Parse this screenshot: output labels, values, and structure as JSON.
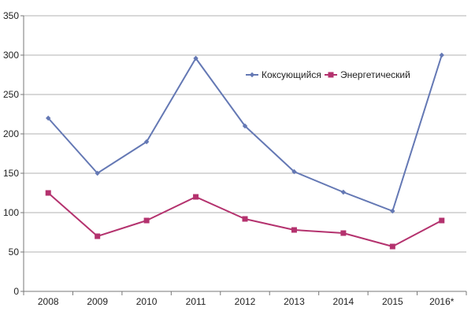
{
  "chart_data": {
    "type": "line",
    "categories": [
      "2008",
      "2009",
      "2010",
      "2011",
      "2012",
      "2013",
      "2014",
      "2015",
      "2016*"
    ],
    "series": [
      {
        "name": "Коксующийся",
        "color": "#6478b4",
        "marker": "diamond",
        "values": [
          220,
          150,
          190,
          296,
          210,
          152,
          126,
          102,
          300
        ]
      },
      {
        "name": "Энергетический",
        "color": "#b4326e",
        "marker": "square",
        "values": [
          125,
          70,
          90,
          120,
          92,
          78,
          74,
          57,
          90
        ]
      }
    ],
    "y_ticks": [
      0,
      50,
      100,
      150,
      200,
      250,
      300,
      350
    ],
    "ylim": [
      0,
      350
    ],
    "grid": "horizontal",
    "legend_position": "top-right",
    "title": "",
    "xlabel": "",
    "ylabel": ""
  }
}
